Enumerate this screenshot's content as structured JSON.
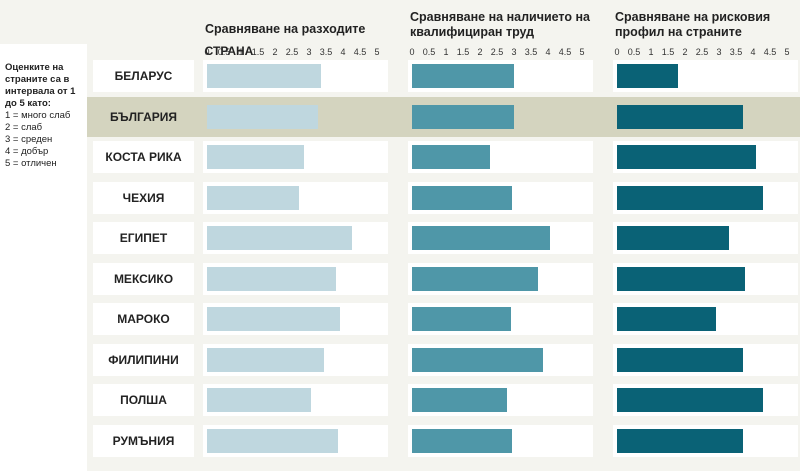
{
  "legend": {
    "heading": "Оценките на страните са в интервала от 1 до 5 като:",
    "scale": [
      "1 = много слаб",
      "2 = слаб",
      "3 = среден",
      "4 = добър",
      "5 = отличен"
    ]
  },
  "chart_data": {
    "type": "bar",
    "orientation": "horizontal",
    "country_header": "СТРАНА",
    "categories": [
      "БЕЛАРУС",
      "БЪЛГАРИЯ",
      "КОСТА РИКА",
      "ЧЕХИЯ",
      "ЕГИПЕТ",
      "МЕКСИКО",
      "МАРОКО",
      "ФИЛИПИНИ",
      "ПОЛША",
      "РУМЪНИЯ"
    ],
    "highlighted_category": "БЪЛГАРИЯ",
    "xlim": [
      0,
      5
    ],
    "ticks": [
      "0",
      "0.5",
      "1",
      "1.5",
      "2",
      "2.5",
      "3",
      "3.5",
      "4",
      "4.5",
      "5"
    ],
    "series": [
      {
        "name": "Сравняване на разходите",
        "color": "#bfd7df",
        "values": [
          3.35,
          3.25,
          2.85,
          2.7,
          4.25,
          3.8,
          3.9,
          3.45,
          3.05,
          3.85
        ]
      },
      {
        "name": "Сравняване на наличието на квалифициран труд",
        "color": "#4f97a8",
        "values": [
          3.0,
          3.0,
          2.3,
          2.95,
          4.05,
          3.7,
          2.9,
          3.85,
          2.8,
          2.95
        ]
      },
      {
        "name": "Сравняване на рисковия профил на страните",
        "color": "#0a6276",
        "values": [
          1.8,
          3.7,
          4.1,
          4.3,
          3.3,
          3.75,
          2.9,
          3.7,
          4.3,
          3.7
        ]
      }
    ]
  },
  "colors": {
    "background": "#f4f4ef",
    "highlight": "#d4d4bf"
  }
}
